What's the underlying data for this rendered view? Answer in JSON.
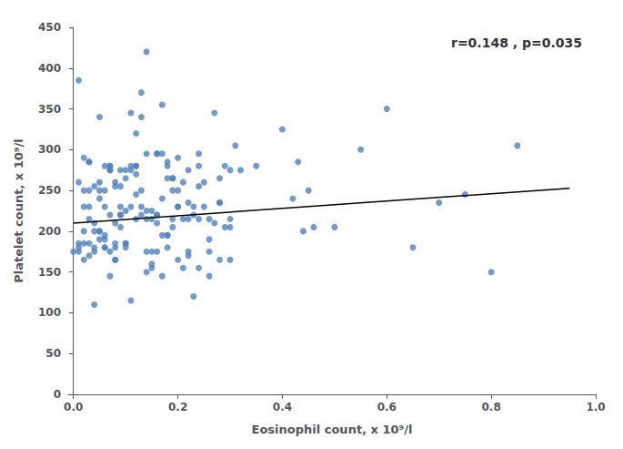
{
  "chart_data": {
    "type": "scatter",
    "x_label": "Eosinophil count, x 10⁹/l",
    "y_label": "Platelet count, x 10⁹/l",
    "annotation": "r=0.148 , p=0.035",
    "xlim": [
      -0.01,
      1.0
    ],
    "ylim": [
      0,
      450
    ],
    "xticks": [
      {
        "value": 0,
        "label": "0.0"
      },
      0.2,
      0.4,
      0.6,
      0.8,
      {
        "value": 1.0,
        "label": "1.0"
      }
    ],
    "yticks": [
      0,
      50,
      100,
      150,
      200,
      250,
      300,
      350,
      400,
      450
    ],
    "grid": false,
    "series": [
      {
        "type": "scatter",
        "color": "#4F81BD",
        "x": [
          0.02,
          0.01,
          0.03,
          0.0,
          0.05,
          0.04,
          0.06,
          0.07,
          0.08,
          0.09,
          0.02,
          0.03,
          0.01,
          0.04,
          0.06,
          0.05,
          0.07,
          0.08,
          0.1,
          0.09,
          0.11,
          0.12,
          0.13,
          0.14,
          0.15,
          0.16,
          0.17,
          0.18,
          0.19,
          0.2,
          0.01,
          0.02,
          0.03,
          0.04,
          0.05,
          0.06,
          0.07,
          0.08,
          0.09,
          0.1,
          0.11,
          0.12,
          0.13,
          0.14,
          0.15,
          0.16,
          0.17,
          0.18,
          0.19,
          0.21,
          0.22,
          0.23,
          0.24,
          0.25,
          0.26,
          0.27,
          0.28,
          0.29,
          0.3,
          0.31,
          0.02,
          0.03,
          0.04,
          0.05,
          0.06,
          0.07,
          0.08,
          0.09,
          0.1,
          0.11,
          0.12,
          0.13,
          0.14,
          0.15,
          0.16,
          0.17,
          0.18,
          0.19,
          0.2,
          0.21,
          0.22,
          0.23,
          0.24,
          0.25,
          0.26,
          0.27,
          0.28,
          0.29,
          0.3,
          0.32,
          0.01,
          0.02,
          0.03,
          0.04,
          0.05,
          0.06,
          0.07,
          0.08,
          0.09,
          0.1,
          0.11,
          0.12,
          0.13,
          0.14,
          0.15,
          0.16,
          0.17,
          0.18,
          0.19,
          0.2,
          0.22,
          0.24,
          0.26,
          0.28,
          0.3,
          0.35,
          0.4,
          0.45,
          0.5,
          0.55,
          0.6,
          0.65,
          0.7,
          0.75,
          0.8,
          0.85,
          0.42,
          0.44,
          0.43,
          0.46,
          0.05,
          0.06,
          0.07,
          0.08,
          0.09,
          0.1,
          0.11,
          0.12,
          0.13,
          0.14,
          0.15,
          0.16,
          0.17,
          0.18,
          0.19,
          0.2,
          0.21,
          0.22,
          0.23,
          0.24,
          0.01,
          0.02,
          0.03,
          0.04,
          0.06,
          0.08,
          0.1,
          0.12,
          0.14,
          0.16,
          0.18,
          0.2,
          0.22,
          0.24,
          0.26,
          0.28,
          0.3,
          0.03,
          0.05,
          0.07
        ],
        "values": [
          230,
          175,
          230,
          175,
          200,
          210,
          180,
          220,
          185,
          230,
          290,
          170,
          385,
          110,
          190,
          260,
          275,
          165,
          180,
          220,
          345,
          320,
          340,
          150,
          155,
          210,
          145,
          195,
          265,
          250,
          260,
          185,
          215,
          180,
          250,
          230,
          175,
          180,
          275,
          185,
          115,
          215,
          220,
          420,
          175,
          220,
          355,
          280,
          205,
          215,
          175,
          120,
          155,
          260,
          190,
          345,
          165,
          280,
          215,
          305,
          165,
          285,
          200,
          240,
          280,
          280,
          260,
          205,
          265,
          275,
          270,
          370,
          215,
          160,
          295,
          295,
          265,
          215,
          230,
          155,
          215,
          220,
          280,
          230,
          145,
          210,
          235,
          205,
          275,
          275,
          185,
          250,
          285,
          255,
          340,
          195,
          145,
          210,
          255,
          185,
          280,
          245,
          230,
          295,
          225,
          295,
          240,
          195,
          265,
          165,
          170,
          295,
          175,
          235,
          205,
          280,
          325,
          250,
          205,
          300,
          350,
          180,
          235,
          245,
          150,
          305,
          240,
          200,
          285,
          205,
          190,
          250,
          280,
          255,
          220,
          275,
          230,
          280,
          250,
          225,
          215,
          175,
          195,
          180,
          250,
          290,
          260,
          235,
          230,
          255,
          180,
          200,
          185,
          175,
          180,
          165,
          225,
          280,
          175,
          220,
          285,
          230,
          275,
          215,
          215,
          265,
          165,
          250,
          200,
          275
        ]
      },
      {
        "type": "line",
        "color": "#000000",
        "x": [
          0,
          0.95
        ],
        "values": [
          210,
          252.75
        ]
      }
    ]
  }
}
